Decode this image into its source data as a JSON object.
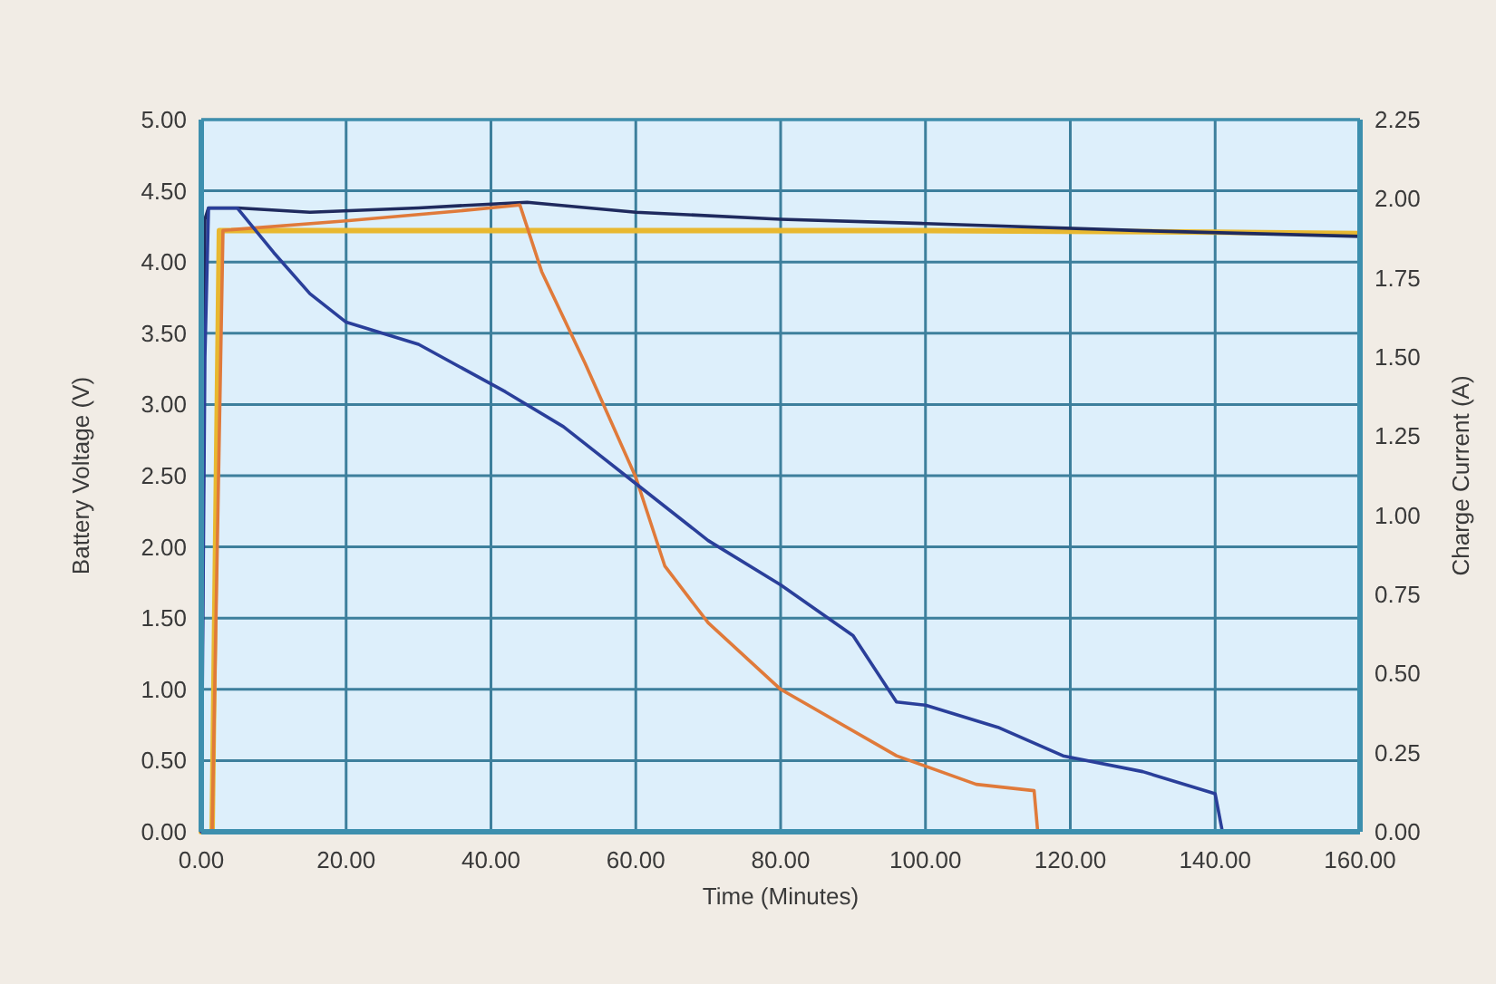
{
  "chart_data": {
    "type": "line",
    "xlabel": "Time (Minutes)",
    "ylabel": "Battery Voltage (V)",
    "y2label": "Charge Current (A)",
    "xlim": [
      0,
      160
    ],
    "xticks": [
      {
        "value": 0,
        "label": "0.00"
      },
      {
        "value": 20,
        "label": "20.00"
      },
      {
        "value": 40,
        "label": "40.00"
      },
      {
        "value": 60,
        "label": "60.00"
      },
      {
        "value": 80,
        "label": "80.00"
      },
      {
        "value": 100,
        "label": "100.00"
      },
      {
        "value": 120,
        "label": "120.00"
      },
      {
        "value": 140,
        "label": "140.00"
      },
      {
        "value": 160,
        "label": "160.00"
      }
    ],
    "ylim": [
      0,
      5
    ],
    "yticks": [
      {
        "value": 0,
        "label": "0.00"
      },
      {
        "value": 0.5,
        "label": "0.50"
      },
      {
        "value": 1,
        "label": "1.00"
      },
      {
        "value": 1.5,
        "label": "1.50"
      },
      {
        "value": 2,
        "label": "2.00"
      },
      {
        "value": 2.5,
        "label": "2.50"
      },
      {
        "value": 3,
        "label": "3.00"
      },
      {
        "value": 3.5,
        "label": "3.50"
      },
      {
        "value": 4,
        "label": "4.00"
      },
      {
        "value": 4.5,
        "label": "4.50"
      },
      {
        "value": 5,
        "label": "5.00"
      }
    ],
    "y2lim": [
      0,
      2.25
    ],
    "y2ticks": [
      {
        "value": 0,
        "label": "0.00"
      },
      {
        "value": 0.25,
        "label": "0.25"
      },
      {
        "value": 0.5,
        "label": "0.50"
      },
      {
        "value": 0.75,
        "label": "0.75"
      },
      {
        "value": 1,
        "label": "1.00"
      },
      {
        "value": 1.25,
        "label": "1.25"
      },
      {
        "value": 1.5,
        "label": "1.50"
      },
      {
        "value": 1.75,
        "label": "1.75"
      },
      {
        "value": 2,
        "label": "2.00"
      },
      {
        "value": 2.25,
        "label": "2.25"
      }
    ],
    "grid": true,
    "marker": "none",
    "line_style": "solid",
    "series": [
      {
        "color": "#e8b830",
        "axis": "y",
        "x": [
          0,
          1.5,
          2.5,
          20,
          60,
          100,
          140,
          160
        ],
        "values": [
          0,
          0,
          4.22,
          4.22,
          4.22,
          4.22,
          4.21,
          4.2
        ]
      },
      {
        "color": "#1f2a5e",
        "axis": "y",
        "x": [
          0,
          0.5,
          1,
          5,
          15,
          30,
          45,
          60,
          80,
          100,
          130,
          160
        ],
        "values": [
          0,
          4.3,
          4.38,
          4.38,
          4.35,
          4.38,
          4.42,
          4.35,
          4.3,
          4.27,
          4.22,
          4.18
        ]
      },
      {
        "color": "#e07a3a",
        "axis": "y2",
        "x": [
          0,
          1.5,
          3,
          20,
          35,
          44,
          47,
          53,
          60,
          64,
          70,
          80,
          96,
          107,
          115,
          115.5
        ],
        "values": [
          0,
          0,
          1.9,
          1.93,
          1.96,
          1.98,
          1.77,
          1.48,
          1.12,
          0.84,
          0.66,
          0.45,
          0.24,
          0.15,
          0.13,
          0
        ]
      },
      {
        "color": "#2a3f9a",
        "axis": "y2",
        "x": [
          0,
          0.5,
          1,
          5,
          10,
          15,
          20,
          30,
          42,
          50,
          60,
          70,
          80,
          90,
          96,
          100,
          110,
          119,
          130,
          140,
          141
        ],
        "values": [
          0,
          1.5,
          1.97,
          1.97,
          1.83,
          1.7,
          1.61,
          1.54,
          1.39,
          1.28,
          1.1,
          0.92,
          0.78,
          0.62,
          0.41,
          0.4,
          0.33,
          0.24,
          0.19,
          0.12,
          0
        ]
      }
    ]
  }
}
